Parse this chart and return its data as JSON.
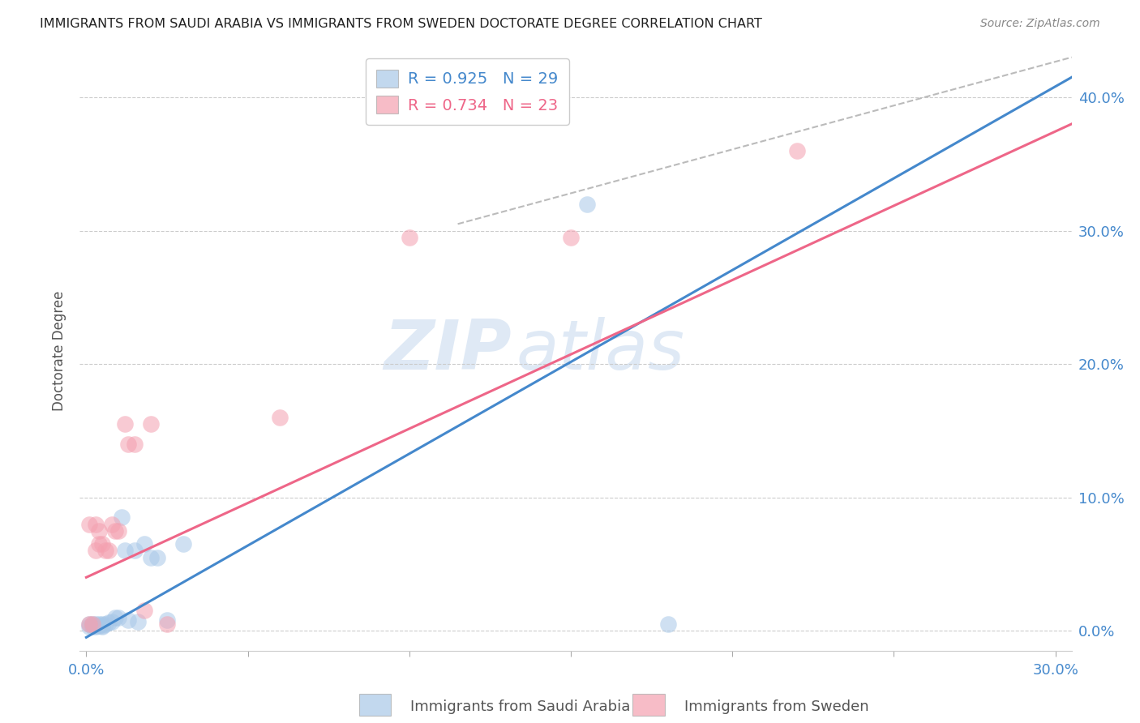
{
  "title": "IMMIGRANTS FROM SAUDI ARABIA VS IMMIGRANTS FROM SWEDEN DOCTORATE DEGREE CORRELATION CHART",
  "source": "Source: ZipAtlas.com",
  "ylabel": "Doctorate Degree",
  "ytick_labels": [
    "0.0%",
    "10.0%",
    "20.0%",
    "30.0%",
    "40.0%"
  ],
  "ytick_values": [
    0.0,
    0.1,
    0.2,
    0.3,
    0.4
  ],
  "xlim": [
    -0.002,
    0.305
  ],
  "ylim": [
    -0.015,
    0.435
  ],
  "watermark_zip": "ZIP",
  "watermark_atlas": "atlas",
  "saudi_R": 0.925,
  "saudi_N": 29,
  "sweden_R": 0.734,
  "sweden_N": 23,
  "saudi_color": "#a8c8e8",
  "sweden_color": "#f4a0b0",
  "saudi_line_color": "#4488cc",
  "sweden_line_color": "#ee6688",
  "dashed_line_color": "#bbbbbb",
  "saudi_x": [
    0.001,
    0.001,
    0.002,
    0.002,
    0.003,
    0.003,
    0.003,
    0.004,
    0.004,
    0.005,
    0.005,
    0.005,
    0.006,
    0.007,
    0.008,
    0.009,
    0.01,
    0.011,
    0.012,
    0.013,
    0.015,
    0.016,
    0.018,
    0.02,
    0.022,
    0.025,
    0.03,
    0.155,
    0.18
  ],
  "saudi_y": [
    0.003,
    0.005,
    0.003,
    0.005,
    0.003,
    0.004,
    0.005,
    0.004,
    0.005,
    0.003,
    0.004,
    0.005,
    0.005,
    0.006,
    0.007,
    0.01,
    0.01,
    0.085,
    0.06,
    0.008,
    0.06,
    0.007,
    0.065,
    0.055,
    0.055,
    0.008,
    0.065,
    0.32,
    0.005
  ],
  "sweden_x": [
    0.001,
    0.001,
    0.002,
    0.003,
    0.003,
    0.004,
    0.004,
    0.005,
    0.006,
    0.007,
    0.008,
    0.009,
    0.01,
    0.012,
    0.013,
    0.015,
    0.018,
    0.02,
    0.025,
    0.06,
    0.1,
    0.15,
    0.22
  ],
  "sweden_y": [
    0.005,
    0.08,
    0.005,
    0.06,
    0.08,
    0.065,
    0.075,
    0.065,
    0.06,
    0.06,
    0.08,
    0.075,
    0.075,
    0.155,
    0.14,
    0.14,
    0.015,
    0.155,
    0.005,
    0.16,
    0.295,
    0.295,
    0.36
  ],
  "saudi_line_x": [
    0.0,
    0.305
  ],
  "saudi_line_y": [
    -0.005,
    0.415
  ],
  "sweden_line_x": [
    0.0,
    0.305
  ],
  "sweden_line_y": [
    0.04,
    0.38
  ],
  "dashed_line_x": [
    0.115,
    0.305
  ],
  "dashed_line_y": [
    0.305,
    0.43
  ],
  "legend_saudi_label": "Immigrants from Saudi Arabia",
  "legend_sweden_label": "Immigrants from Sweden"
}
